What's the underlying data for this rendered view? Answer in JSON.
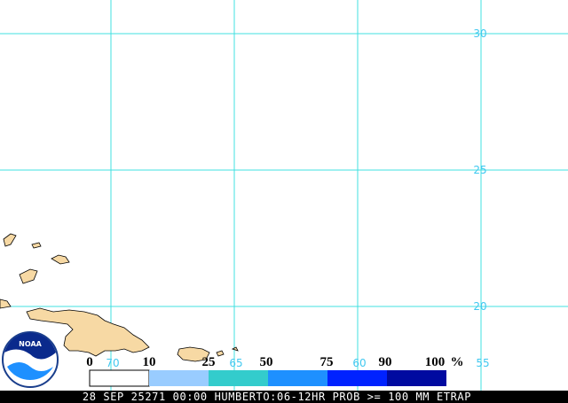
{
  "map": {
    "latitudes": [
      30,
      25,
      20
    ],
    "longitudes": [
      70,
      65,
      60,
      55
    ]
  },
  "legend": {
    "labels": [
      0,
      10,
      25,
      50,
      75,
      90,
      100
    ],
    "unit": "%"
  },
  "caption": "28 SEP 25271 00:00 HUMBERTO:06-12HR PROB >= 100 MM ETRAP",
  "logo": "NOAA"
}
